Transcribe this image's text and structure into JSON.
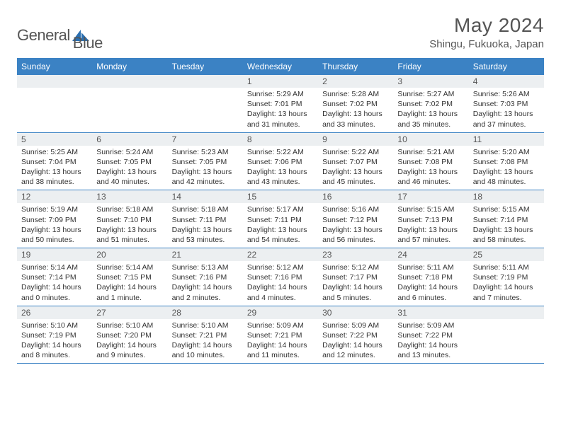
{
  "logo": {
    "text1": "General",
    "text2": "Blue"
  },
  "title": "May 2024",
  "location": "Shingu, Fukuoka, Japan",
  "colors": {
    "header_bg": "#3b82c4",
    "header_text": "#ffffff",
    "daynum_bg": "#eceff1",
    "text": "#333333",
    "border": "#3b82c4",
    "page_bg": "#ffffff",
    "logo_sail": "#2b6fb0"
  },
  "day_headers": [
    "Sunday",
    "Monday",
    "Tuesday",
    "Wednesday",
    "Thursday",
    "Friday",
    "Saturday"
  ],
  "weeks": [
    [
      {
        "n": "",
        "sr": "",
        "ss": "",
        "dl": ""
      },
      {
        "n": "",
        "sr": "",
        "ss": "",
        "dl": ""
      },
      {
        "n": "",
        "sr": "",
        "ss": "",
        "dl": ""
      },
      {
        "n": "1",
        "sr": "5:29 AM",
        "ss": "7:01 PM",
        "dl": "13 hours and 31 minutes."
      },
      {
        "n": "2",
        "sr": "5:28 AM",
        "ss": "7:02 PM",
        "dl": "13 hours and 33 minutes."
      },
      {
        "n": "3",
        "sr": "5:27 AM",
        "ss": "7:02 PM",
        "dl": "13 hours and 35 minutes."
      },
      {
        "n": "4",
        "sr": "5:26 AM",
        "ss": "7:03 PM",
        "dl": "13 hours and 37 minutes."
      }
    ],
    [
      {
        "n": "5",
        "sr": "5:25 AM",
        "ss": "7:04 PM",
        "dl": "13 hours and 38 minutes."
      },
      {
        "n": "6",
        "sr": "5:24 AM",
        "ss": "7:05 PM",
        "dl": "13 hours and 40 minutes."
      },
      {
        "n": "7",
        "sr": "5:23 AM",
        "ss": "7:05 PM",
        "dl": "13 hours and 42 minutes."
      },
      {
        "n": "8",
        "sr": "5:22 AM",
        "ss": "7:06 PM",
        "dl": "13 hours and 43 minutes."
      },
      {
        "n": "9",
        "sr": "5:22 AM",
        "ss": "7:07 PM",
        "dl": "13 hours and 45 minutes."
      },
      {
        "n": "10",
        "sr": "5:21 AM",
        "ss": "7:08 PM",
        "dl": "13 hours and 46 minutes."
      },
      {
        "n": "11",
        "sr": "5:20 AM",
        "ss": "7:08 PM",
        "dl": "13 hours and 48 minutes."
      }
    ],
    [
      {
        "n": "12",
        "sr": "5:19 AM",
        "ss": "7:09 PM",
        "dl": "13 hours and 50 minutes."
      },
      {
        "n": "13",
        "sr": "5:18 AM",
        "ss": "7:10 PM",
        "dl": "13 hours and 51 minutes."
      },
      {
        "n": "14",
        "sr": "5:18 AM",
        "ss": "7:11 PM",
        "dl": "13 hours and 53 minutes."
      },
      {
        "n": "15",
        "sr": "5:17 AM",
        "ss": "7:11 PM",
        "dl": "13 hours and 54 minutes."
      },
      {
        "n": "16",
        "sr": "5:16 AM",
        "ss": "7:12 PM",
        "dl": "13 hours and 56 minutes."
      },
      {
        "n": "17",
        "sr": "5:15 AM",
        "ss": "7:13 PM",
        "dl": "13 hours and 57 minutes."
      },
      {
        "n": "18",
        "sr": "5:15 AM",
        "ss": "7:14 PM",
        "dl": "13 hours and 58 minutes."
      }
    ],
    [
      {
        "n": "19",
        "sr": "5:14 AM",
        "ss": "7:14 PM",
        "dl": "14 hours and 0 minutes."
      },
      {
        "n": "20",
        "sr": "5:14 AM",
        "ss": "7:15 PM",
        "dl": "14 hours and 1 minute."
      },
      {
        "n": "21",
        "sr": "5:13 AM",
        "ss": "7:16 PM",
        "dl": "14 hours and 2 minutes."
      },
      {
        "n": "22",
        "sr": "5:12 AM",
        "ss": "7:16 PM",
        "dl": "14 hours and 4 minutes."
      },
      {
        "n": "23",
        "sr": "5:12 AM",
        "ss": "7:17 PM",
        "dl": "14 hours and 5 minutes."
      },
      {
        "n": "24",
        "sr": "5:11 AM",
        "ss": "7:18 PM",
        "dl": "14 hours and 6 minutes."
      },
      {
        "n": "25",
        "sr": "5:11 AM",
        "ss": "7:19 PM",
        "dl": "14 hours and 7 minutes."
      }
    ],
    [
      {
        "n": "26",
        "sr": "5:10 AM",
        "ss": "7:19 PM",
        "dl": "14 hours and 8 minutes."
      },
      {
        "n": "27",
        "sr": "5:10 AM",
        "ss": "7:20 PM",
        "dl": "14 hours and 9 minutes."
      },
      {
        "n": "28",
        "sr": "5:10 AM",
        "ss": "7:21 PM",
        "dl": "14 hours and 10 minutes."
      },
      {
        "n": "29",
        "sr": "5:09 AM",
        "ss": "7:21 PM",
        "dl": "14 hours and 11 minutes."
      },
      {
        "n": "30",
        "sr": "5:09 AM",
        "ss": "7:22 PM",
        "dl": "14 hours and 12 minutes."
      },
      {
        "n": "31",
        "sr": "5:09 AM",
        "ss": "7:22 PM",
        "dl": "14 hours and 13 minutes."
      },
      {
        "n": "",
        "sr": "",
        "ss": "",
        "dl": ""
      }
    ]
  ],
  "labels": {
    "sunrise": "Sunrise:",
    "sunset": "Sunset:",
    "daylight": "Daylight:"
  }
}
